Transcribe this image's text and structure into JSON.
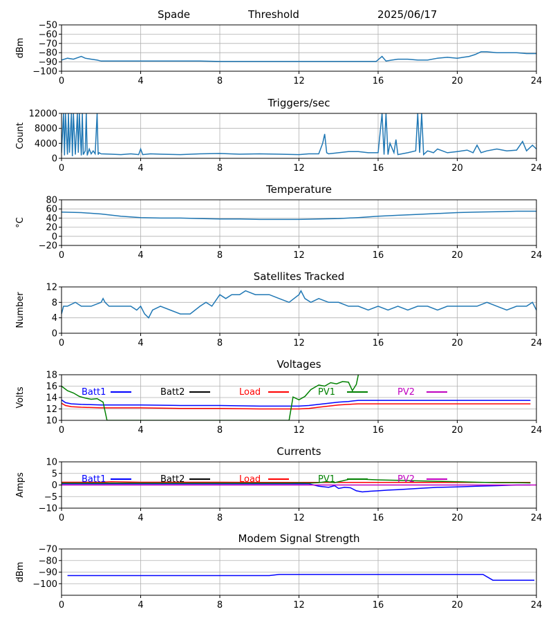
{
  "header": {
    "site": "Spade",
    "mode": "Threshold",
    "date": "2025/06/17"
  },
  "chart_data": [
    {
      "type": "line",
      "title": "",
      "ylabel": "dBm",
      "xlim": [
        0,
        24
      ],
      "ylim": [
        -100,
        -50
      ],
      "xticks": [
        0,
        4,
        8,
        12,
        16,
        20,
        24
      ],
      "yticks": [
        -100,
        -90,
        -80,
        -70,
        -60,
        -50
      ],
      "grid": true,
      "series": [
        {
          "color": "#1f77b4",
          "x": [
            0,
            0.3,
            0.6,
            1.0,
            1.2,
            1.5,
            1.8,
            2,
            3,
            4,
            5,
            6,
            7,
            8,
            9,
            10,
            11,
            12,
            13,
            14,
            15,
            15.9,
            16.2,
            16.4,
            16.7,
            17,
            17.5,
            18,
            18.5,
            19,
            19.5,
            20,
            20.3,
            20.6,
            20.9,
            21.2,
            21.5,
            22,
            22.5,
            23,
            23.5,
            24
          ],
          "y": [
            -88,
            -86,
            -87,
            -84,
            -86,
            -87,
            -88,
            -89,
            -89,
            -89,
            -89,
            -89,
            -89,
            -89.5,
            -89.5,
            -89.5,
            -89.5,
            -89.5,
            -89.5,
            -89.5,
            -89.5,
            -89.5,
            -84,
            -89,
            -88,
            -87,
            -87,
            -88,
            -88,
            -86,
            -85,
            -86,
            -85,
            -84,
            -82,
            -79,
            -79,
            -80,
            -80,
            -80,
            -81,
            -81
          ]
        }
      ]
    },
    {
      "type": "line",
      "title": "Triggers/sec",
      "ylabel": "Count",
      "xlim": [
        0,
        24
      ],
      "ylim": [
        0,
        12000
      ],
      "xticks": [
        0,
        4,
        8,
        12,
        16,
        20,
        24
      ],
      "yticks": [
        0,
        4000,
        8000,
        12000
      ],
      "grid": true,
      "series": [
        {
          "color": "#1f77b4",
          "x": [
            0,
            0.1,
            0.15,
            0.2,
            0.3,
            0.35,
            0.4,
            0.5,
            0.55,
            0.6,
            0.7,
            0.8,
            0.85,
            0.9,
            1.0,
            1.05,
            1.1,
            1.2,
            1.25,
            1.3,
            1.4,
            1.5,
            1.6,
            1.7,
            1.8,
            1.85,
            1.9,
            2.0,
            2.5,
            3,
            3.5,
            3.9,
            4.0,
            4.1,
            4.5,
            5,
            6,
            7,
            8,
            9,
            10,
            11,
            12,
            12.5,
            13,
            13.2,
            13.3,
            13.4,
            13.5,
            14,
            14.5,
            15,
            15.5,
            16,
            16.2,
            16.3,
            16.4,
            16.5,
            16.6,
            16.8,
            16.9,
            17,
            17.5,
            17.9,
            18.0,
            18.1,
            18.2,
            18.3,
            18.5,
            18.8,
            19,
            19.5,
            20,
            20.5,
            20.8,
            21,
            21.2,
            21.5,
            22,
            22.5,
            23,
            23.3,
            23.5,
            23.8,
            24
          ],
          "y": [
            1500,
            12000,
            800,
            12000,
            1000,
            12000,
            1500,
            12000,
            600,
            12000,
            1000,
            12000,
            1500,
            12000,
            800,
            12000,
            1000,
            2000,
            12000,
            800,
            2500,
            1200,
            2000,
            1200,
            12000,
            1000,
            1500,
            1200,
            1100,
            1000,
            1200,
            1000,
            2500,
            1000,
            1200,
            1100,
            1000,
            1200,
            1300,
            1100,
            1200,
            1100,
            1000,
            1200,
            1200,
            4000,
            6500,
            1500,
            1200,
            1500,
            1800,
            1800,
            1500,
            1500,
            12000,
            1000,
            12000,
            1000,
            4000,
            1500,
            5000,
            1000,
            1500,
            2000,
            12000,
            1500,
            12000,
            1000,
            2000,
            1500,
            2500,
            1500,
            1800,
            2200,
            1500,
            3500,
            1500,
            2000,
            2500,
            2000,
            2200,
            4500,
            2000,
            3500,
            2500
          ]
        }
      ]
    },
    {
      "type": "line",
      "title": "Temperature",
      "ylabel": "°C",
      "xlim": [
        0,
        24
      ],
      "ylim": [
        -20,
        80
      ],
      "xticks": [
        0,
        4,
        8,
        12,
        16,
        20,
        24
      ],
      "yticks": [
        -20,
        0,
        20,
        40,
        60,
        80
      ],
      "grid": true,
      "series": [
        {
          "color": "#1f77b4",
          "x": [
            0,
            1,
            2,
            3,
            4,
            5,
            6,
            7,
            8,
            9,
            10,
            11,
            12,
            13,
            14,
            15,
            16,
            17,
            18,
            19,
            20,
            21,
            22,
            23,
            24
          ],
          "y": [
            53,
            52,
            49,
            44,
            41,
            40,
            40,
            39,
            38,
            38,
            37,
            37,
            37,
            38,
            39,
            41,
            44,
            46,
            48,
            50,
            52,
            53,
            54,
            55,
            55
          ]
        }
      ]
    },
    {
      "type": "line",
      "title": "Satellites Tracked",
      "ylabel": "Number",
      "xlim": [
        0,
        24
      ],
      "ylim": [
        0,
        12
      ],
      "xticks": [
        0,
        4,
        8,
        12,
        16,
        20,
        24
      ],
      "yticks": [
        0,
        4,
        8,
        12
      ],
      "grid": true,
      "series": [
        {
          "color": "#1f77b4",
          "x": [
            0,
            0.1,
            0.3,
            0.7,
            1,
            1.5,
            2,
            2.1,
            2.2,
            2.4,
            3,
            3.5,
            3.8,
            4,
            4.2,
            4.4,
            4.6,
            5,
            5.5,
            6,
            6.5,
            7,
            7.3,
            7.6,
            8,
            8.3,
            8.6,
            9,
            9.3,
            9.8,
            10.5,
            11,
            11.5,
            12,
            12.1,
            12.3,
            12.6,
            13,
            13.5,
            14,
            14.5,
            15,
            15.5,
            16,
            16.5,
            17,
            17.5,
            18,
            18.5,
            19,
            19.5,
            20,
            20.5,
            21,
            21.5,
            22,
            22.5,
            23,
            23.5,
            23.8,
            24
          ],
          "y": [
            5,
            7,
            7,
            8,
            7,
            7,
            8,
            9,
            8,
            7,
            7,
            7,
            6,
            7,
            5,
            4,
            6,
            7,
            6,
            5,
            5,
            7,
            8,
            7,
            10,
            9,
            10,
            10,
            11,
            10,
            10,
            9,
            8,
            10,
            11,
            9,
            8,
            9,
            8,
            8,
            7,
            7,
            6,
            7,
            6,
            7,
            6,
            7,
            7,
            6,
            7,
            7,
            7,
            7,
            8,
            7,
            6,
            7,
            7,
            8,
            6
          ]
        }
      ]
    },
    {
      "type": "line",
      "title": "Voltages",
      "ylabel": "Volts",
      "xlim": [
        0,
        24
      ],
      "ylim": [
        10,
        18
      ],
      "xticks": [
        0,
        4,
        8,
        12,
        16,
        20,
        24
      ],
      "yticks": [
        10,
        12,
        14,
        16,
        18
      ],
      "grid": true,
      "legend": "top, inline",
      "series": [
        {
          "name": "Batt1",
          "color": "#0000ff",
          "x": [
            0,
            0.2,
            0.5,
            1,
            2,
            4,
            6,
            8,
            10,
            12,
            12.5,
            13,
            13.5,
            14,
            14.5,
            14.7,
            15,
            16,
            18,
            20,
            22,
            23.7
          ],
          "y": [
            13.6,
            13.1,
            12.9,
            12.8,
            12.7,
            12.7,
            12.6,
            12.6,
            12.5,
            12.5,
            12.6,
            12.8,
            13.0,
            13.2,
            13.3,
            13.4,
            13.5,
            13.5,
            13.5,
            13.5,
            13.5,
            13.5
          ]
        },
        {
          "name": "Batt2",
          "color": "#000000",
          "x": [],
          "y": []
        },
        {
          "name": "Load",
          "color": "#ff0000",
          "x": [
            0,
            0.2,
            0.5,
            1,
            2,
            4,
            6,
            8,
            10,
            12,
            12.5,
            13,
            13.5,
            14,
            14.5,
            15,
            16,
            18,
            20,
            22,
            23.7
          ],
          "y": [
            13.0,
            12.6,
            12.4,
            12.3,
            12.2,
            12.2,
            12.1,
            12.1,
            12.0,
            12.0,
            12.1,
            12.3,
            12.5,
            12.7,
            12.8,
            12.9,
            12.9,
            12.9,
            12.9,
            12.9,
            12.9
          ]
        },
        {
          "name": "PV1",
          "color": "#008000",
          "x": [
            0,
            0.3,
            0.6,
            0.9,
            1.2,
            1.5,
            1.8,
            2.1,
            2.3,
            11.5,
            11.7,
            12.0,
            12.3,
            12.6,
            13.0,
            13.3,
            13.6,
            13.9,
            14.2,
            14.5,
            14.7,
            14.9,
            15.0
          ],
          "y": [
            16,
            15.2,
            14.8,
            14.2,
            13.9,
            13.7,
            13.8,
            13.2,
            10,
            10,
            14.1,
            13.6,
            14.2,
            15.4,
            16.2,
            16.0,
            16.6,
            16.4,
            16.8,
            16.7,
            15.2,
            16.3,
            18
          ]
        },
        {
          "name": "PV2",
          "color": "#bf00bf",
          "x": [],
          "y": []
        }
      ]
    },
    {
      "type": "line",
      "title": "Currents",
      "ylabel": "Amps",
      "xlim": [
        0,
        24
      ],
      "ylim": [
        -10,
        10
      ],
      "xticks": [
        0,
        4,
        8,
        12,
        16,
        20,
        24
      ],
      "yticks": [
        -10,
        -5,
        0,
        5,
        10
      ],
      "grid": true,
      "legend": "top, inline",
      "series": [
        {
          "name": "Batt1",
          "color": "#0000ff",
          "x": [
            0,
            2,
            4,
            6,
            8,
            10,
            12,
            12.5,
            13,
            13.5,
            13.8,
            14,
            14.3,
            14.6,
            14.9,
            15.2,
            15.6,
            16,
            16.5,
            17,
            18,
            19,
            20,
            21,
            22,
            23,
            23.7
          ],
          "y": [
            0.5,
            0.5,
            0.5,
            0.5,
            0.5,
            0.5,
            0.5,
            0.5,
            -0.5,
            -1,
            -0.3,
            -1.5,
            -1,
            -1.2,
            -2.5,
            -3,
            -2.7,
            -2.5,
            -2.2,
            -2,
            -1.5,
            -1,
            -0.8,
            -0.5,
            -0.3,
            0,
            0
          ]
        },
        {
          "name": "Batt2",
          "color": "#000000",
          "x": [],
          "y": []
        },
        {
          "name": "Load",
          "color": "#ff0000",
          "x": [
            0,
            2,
            2.5,
            4,
            6,
            8,
            10,
            12,
            14,
            16,
            18,
            20,
            22,
            23.7
          ],
          "y": [
            1.2,
            1.2,
            1.4,
            1.2,
            1.2,
            1.2,
            1.1,
            1.1,
            1.1,
            1.1,
            1.1,
            1.1,
            1.1,
            1.1
          ]
        },
        {
          "name": "PV1",
          "color": "#008000",
          "x": [
            0,
            2,
            4,
            6,
            8,
            10,
            11.5,
            12,
            12.5,
            13,
            13.4,
            13.8,
            14.2,
            14.6,
            15,
            15.5,
            16,
            17,
            18,
            19,
            20,
            21,
            22,
            23,
            23.7
          ],
          "y": [
            0.8,
            0.8,
            0.8,
            0.8,
            0.8,
            0.8,
            0.8,
            0.9,
            0.8,
            1,
            1.5,
            1,
            1.8,
            2.6,
            2.6,
            2.4,
            2.2,
            2,
            1.8,
            1.6,
            1.4,
            1.2,
            1,
            1,
            0.9
          ]
        },
        {
          "name": "PV2",
          "color": "#bf00bf",
          "x": [
            0,
            24
          ],
          "y": [
            0,
            0
          ]
        }
      ]
    },
    {
      "type": "line",
      "title": "Modem Signal Strength",
      "ylabel": "dBm",
      "xlim": [
        0,
        24
      ],
      "ylim": [
        -110,
        -70
      ],
      "xticks": [
        0,
        4,
        8,
        12,
        16,
        20,
        24
      ],
      "yticks": [
        -100,
        -90,
        -80,
        -70
      ],
      "grid": true,
      "series": [
        {
          "color": "#0000ff",
          "x": [
            0.3,
            10.5,
            11,
            21.3,
            21.8,
            23.9
          ],
          "y": [
            -93,
            -93,
            -92,
            -92,
            -97,
            -97
          ]
        }
      ]
    }
  ]
}
